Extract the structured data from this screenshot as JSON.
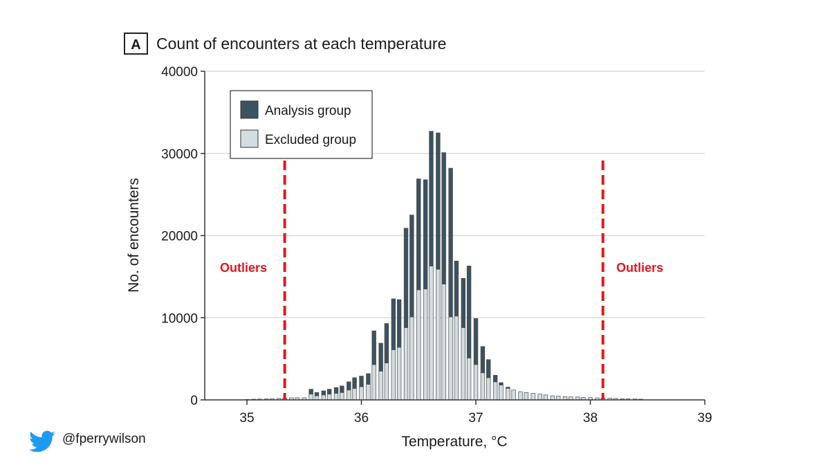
{
  "colors": {
    "analysis": "#3d5260",
    "excluded": "#d2dde2",
    "outline": "#4a4a4a",
    "grid": "#d4d4d4",
    "axis": "#333333",
    "outlier": "#e8151b",
    "twitter": "#1d9bf0"
  },
  "chart_data": {
    "type": "bar",
    "stacked": true,
    "panel_letter": "A",
    "title": "Count of encounters at each temperature",
    "xlabel": "Temperature, °C",
    "ylabel": "No. of encounters",
    "xlim": [
      34.6,
      39
    ],
    "ylim": [
      0,
      40000
    ],
    "x_ticks": [
      35,
      36,
      37,
      38,
      39
    ],
    "x_tick_labels": [
      "35",
      "36",
      "37",
      "38",
      "39"
    ],
    "y_ticks": [
      0,
      10000,
      20000,
      30000,
      40000
    ],
    "y_tick_labels": [
      "0",
      "10000",
      "20000",
      "30000",
      "40000"
    ],
    "grid": "horizontal",
    "legend_position": "top-left",
    "bin_width": 0.0556,
    "x": [
      35.0,
      35.06,
      35.11,
      35.17,
      35.22,
      35.28,
      35.33,
      35.39,
      35.44,
      35.5,
      35.56,
      35.61,
      35.67,
      35.72,
      35.78,
      35.83,
      35.89,
      35.94,
      36.0,
      36.06,
      36.11,
      36.17,
      36.22,
      36.28,
      36.33,
      36.39,
      36.44,
      36.5,
      36.56,
      36.61,
      36.67,
      36.72,
      36.78,
      36.83,
      36.89,
      36.94,
      37.0,
      37.06,
      37.11,
      37.17,
      37.22,
      37.28,
      37.33,
      37.39,
      37.44,
      37.5,
      37.56,
      37.61,
      37.67,
      37.72,
      37.78,
      37.83,
      37.89,
      37.94,
      38.0,
      38.06,
      38.11,
      38.17,
      38.22,
      38.28,
      38.33,
      38.39,
      38.44
    ],
    "series": [
      {
        "name": "Excluded group",
        "values": [
          50,
          80,
          100,
          120,
          150,
          180,
          230,
          260,
          260,
          260,
          700,
          500,
          600,
          700,
          800,
          900,
          1200,
          1400,
          1600,
          1900,
          4300,
          3500,
          4500,
          6100,
          6400,
          8800,
          10100,
          13400,
          13500,
          16300,
          15900,
          14100,
          10100,
          10200,
          8800,
          5100,
          4300,
          3300,
          2700,
          2200,
          1800,
          1400,
          1200,
          1000,
          900,
          800,
          700,
          600,
          500,
          450,
          400,
          380,
          350,
          300,
          280,
          250,
          220,
          200,
          180,
          150,
          130,
          110,
          90
        ]
      },
      {
        "name": "Analysis group",
        "values": [
          0,
          0,
          0,
          0,
          0,
          0,
          0,
          0,
          0,
          0,
          600,
          400,
          500,
          600,
          700,
          800,
          1000,
          1300,
          1300,
          1300,
          4100,
          3400,
          4800,
          6200,
          5800,
          12100,
          12400,
          13500,
          13300,
          16400,
          16600,
          16000,
          18100,
          6700,
          6000,
          11200,
          5600,
          3200,
          2200,
          800,
          300,
          150,
          0,
          0,
          0,
          0,
          0,
          0,
          0,
          0,
          0,
          0,
          0,
          0,
          0,
          0,
          0,
          0,
          0,
          0,
          0,
          0,
          0
        ]
      }
    ],
    "legend": [
      "Analysis group",
      "Excluded group"
    ],
    "cutoffs": [
      35.33,
      38.11
    ],
    "annotations": [
      "Outliers",
      "Outliers"
    ]
  },
  "footer": {
    "twitter_handle": "@fperrywilson"
  }
}
